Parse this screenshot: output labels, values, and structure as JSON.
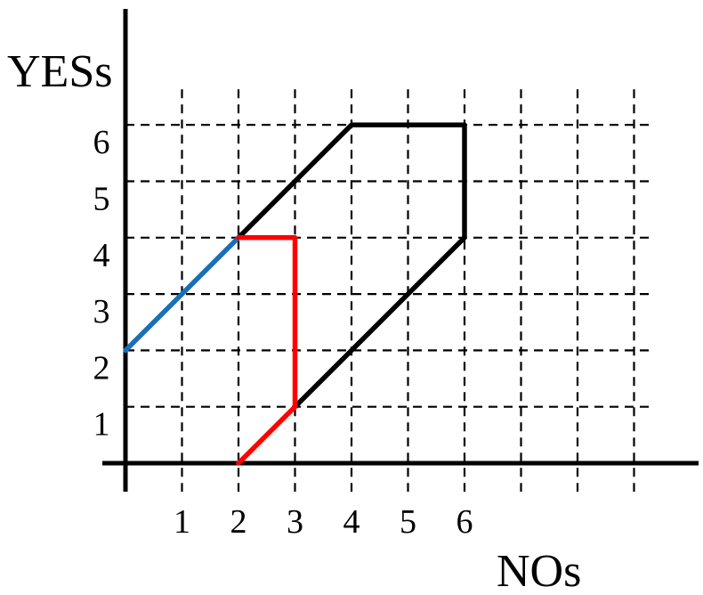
{
  "chart_data": {
    "type": "line",
    "xlabel": "NOs",
    "ylabel": "YESs",
    "x_ticks": [
      1,
      2,
      3,
      4,
      5,
      6
    ],
    "y_ticks": [
      1,
      2,
      3,
      4,
      5,
      6
    ],
    "xlim": [
      0,
      9
    ],
    "ylim": [
      0,
      6
    ],
    "grid": true,
    "series": [
      {
        "color": "#1a6fb5",
        "points": [
          [
            0,
            2
          ],
          [
            2,
            4
          ]
        ]
      },
      {
        "color": "#000000",
        "points": [
          [
            2,
            4
          ],
          [
            4,
            6
          ],
          [
            6,
            6
          ],
          [
            6,
            4
          ],
          [
            3,
            1
          ]
        ]
      },
      {
        "color": "#ff0000",
        "points": [
          [
            2,
            4
          ],
          [
            3,
            4
          ],
          [
            3,
            1
          ],
          [
            2,
            0
          ]
        ]
      }
    ]
  }
}
